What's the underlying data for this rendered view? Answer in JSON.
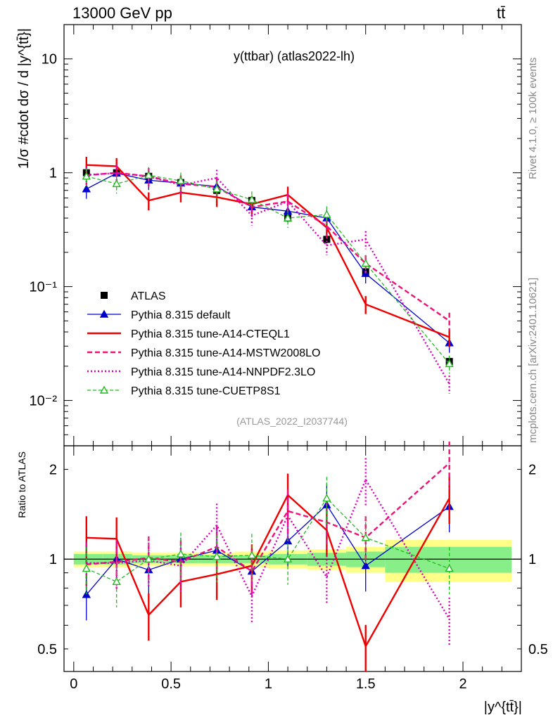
{
  "header": {
    "left": "13000 GeV pp",
    "right": "tt̄"
  },
  "title": "y(ttbar) (atlas2022-lh)",
  "side_labels": {
    "rivet": "Rivet 4.1.0, ≥ 100k events",
    "mcplots": "mcplots.cern.ch [arXiv:2401.10621]"
  },
  "analysis_id": "(ATLAS_2022_I2037744)",
  "chart_data": [
    {
      "type": "line",
      "panel": "main",
      "ylabel": "1/σ #cdot dσ / d |y^{tt̄}|",
      "yscale": "log",
      "ylim": [
        0.004,
        20
      ],
      "xlim": [
        -0.05,
        2.3
      ],
      "ytick_labels": [
        "10",
        "1",
        "10⁻¹",
        "10⁻²"
      ],
      "ytick_values": [
        10,
        1,
        0.1,
        0.01
      ],
      "x": [
        0.065,
        0.22,
        0.385,
        0.55,
        0.735,
        0.915,
        1.1,
        1.3,
        1.5,
        1.93
      ],
      "series": [
        {
          "name": "ATLAS",
          "color": "#000000",
          "style": "data",
          "values": [
            1.0,
            1.0,
            0.93,
            0.82,
            0.7,
            0.57,
            0.4,
            0.26,
            0.135,
            0.022
          ]
        },
        {
          "name": "Pythia 8.315 default",
          "color": "#0000cc",
          "style": "solid-thin",
          "marker": "triangle-filled",
          "values": [
            0.72,
            0.99,
            0.86,
            0.81,
            0.76,
            0.5,
            0.46,
            0.4,
            0.13,
            0.032
          ]
        },
        {
          "name": "Pythia 8.315 tune-A14-CTEQL1",
          "color": "#ee0000",
          "style": "solid-thick",
          "marker": "none",
          "values": [
            1.17,
            1.14,
            0.57,
            0.67,
            0.61,
            0.53,
            0.64,
            0.33,
            0.07,
            0.036
          ]
        },
        {
          "name": "Pythia 8.315 tune-A14-MSTW2008LO",
          "color": "#ee1177",
          "style": "dashed",
          "marker": "none",
          "values": [
            0.95,
            1.0,
            0.93,
            0.8,
            0.75,
            0.5,
            0.56,
            0.34,
            0.16,
            0.05
          ]
        },
        {
          "name": "Pythia 8.315 tune-A14-NNPDF2.3LO",
          "color": "#dd00bb",
          "style": "dotted",
          "marker": "none",
          "values": [
            0.96,
            0.99,
            0.93,
            0.78,
            0.9,
            0.42,
            0.56,
            0.23,
            0.26,
            0.014
          ]
        },
        {
          "name": "Pythia 8.315 tune-CUETP8S1",
          "color": "#22bb22",
          "style": "dashed-thin",
          "marker": "triangle-open",
          "values": [
            0.93,
            0.8,
            0.95,
            0.85,
            0.72,
            0.58,
            0.4,
            0.43,
            0.16,
            0.021
          ]
        }
      ]
    },
    {
      "type": "line",
      "panel": "ratio",
      "ylabel": "Ratio to ATLAS",
      "yscale": "log",
      "ylim": [
        0.42,
        2.4
      ],
      "xlim": [
        -0.05,
        2.3
      ],
      "xlabel": "|y^{tt̄}|",
      "ytick_labels": [
        "2",
        "1",
        "0.5"
      ],
      "ytick_values": [
        2,
        1,
        0.5
      ],
      "xtick_labels": [
        "0",
        "0.5",
        "1",
        "1.5",
        "2"
      ],
      "xtick_values": [
        0,
        0.5,
        1,
        1.5,
        2
      ],
      "x": [
        0.065,
        0.22,
        0.385,
        0.55,
        0.735,
        0.915,
        1.1,
        1.3,
        1.5,
        1.93
      ],
      "bands": {
        "bin_edges": [
          0,
          0.15,
          0.3,
          0.47,
          0.64,
          0.83,
          1.0,
          1.2,
          1.4,
          1.6,
          2.25
        ],
        "stat_green": [
          0.04,
          0.04,
          0.03,
          0.03,
          0.03,
          0.03,
          0.04,
          0.05,
          0.06,
          0.1
        ],
        "total_yellow": [
          0.06,
          0.06,
          0.05,
          0.05,
          0.05,
          0.06,
          0.07,
          0.08,
          0.1,
          0.16
        ]
      },
      "series": [
        {
          "name": "Pythia 8.315 default",
          "color": "#0000cc",
          "values": [
            0.76,
            1.0,
            0.92,
            1.0,
            1.07,
            0.91,
            1.15,
            1.52,
            0.95,
            1.5
          ]
        },
        {
          "name": "Pythia 8.315 tune-A14-CTEQL1",
          "color": "#ee0000",
          "values": [
            1.18,
            1.17,
            0.65,
            0.84,
            0.89,
            0.95,
            1.64,
            1.25,
            0.51,
            1.6
          ]
        },
        {
          "name": "Pythia 8.315 tune-A14-MSTW2008LO",
          "color": "#ee1177",
          "values": [
            0.96,
            0.98,
            1.01,
            0.98,
            1.1,
            0.91,
            1.45,
            1.33,
            1.18,
            2.1
          ]
        },
        {
          "name": "Pythia 8.315 tune-A14-NNPDF2.3LO",
          "color": "#dd00bb",
          "values": [
            0.97,
            0.97,
            0.99,
            0.95,
            1.3,
            0.75,
            1.4,
            0.87,
            1.85,
            0.63
          ]
        },
        {
          "name": "Pythia 8.315 tune-CUETP8S1",
          "color": "#22bb22",
          "values": [
            0.93,
            0.84,
            1.0,
            1.04,
            1.02,
            1.03,
            1.0,
            1.6,
            1.18,
            0.93
          ]
        }
      ]
    }
  ]
}
